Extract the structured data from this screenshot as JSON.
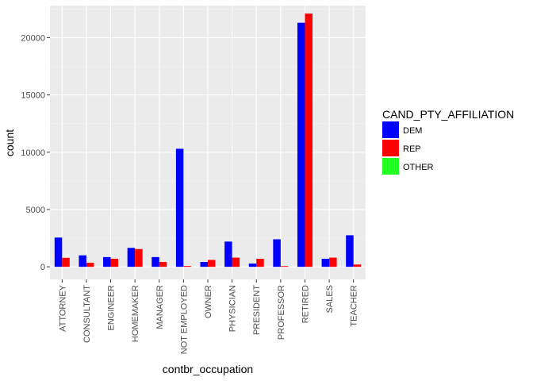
{
  "chart_data": {
    "type": "bar",
    "xlabel": "contbr_occupation",
    "ylabel": "count",
    "ylim": [
      -1100,
      22800
    ],
    "yticks": [
      0,
      5000,
      10000,
      15000,
      20000
    ],
    "ytick_labels": [
      "0",
      "5000",
      "10000",
      "15000",
      "20000"
    ],
    "grid": true,
    "legend": {
      "title": "CAND_PTY_AFFILIATION",
      "placement": "right"
    },
    "categories": [
      "ATTORNEY",
      "CONSULTANT",
      "ENGINEER",
      "HOMEMAKER",
      "MANAGER",
      "NOT EMPLOYED",
      "OWNER",
      "PHYSICIAN",
      "PRESIDENT",
      "PROFESSOR",
      "RETIRED",
      "SALES",
      "TEACHER"
    ],
    "series": [
      {
        "name": "DEM",
        "color": "#0000ff",
        "values": [
          2550,
          1000,
          850,
          1650,
          850,
          10300,
          420,
          2200,
          280,
          2400,
          21300,
          700,
          2750
        ]
      },
      {
        "name": "REP",
        "color": "#ff0000",
        "values": [
          780,
          350,
          700,
          1550,
          420,
          70,
          600,
          800,
          700,
          60,
          22100,
          800,
          200
        ]
      },
      {
        "name": "OTHER",
        "color": "#22ff22",
        "values": [
          0,
          0,
          0,
          0,
          0,
          0,
          0,
          0,
          0,
          0,
          0,
          0,
          0
        ]
      }
    ]
  }
}
